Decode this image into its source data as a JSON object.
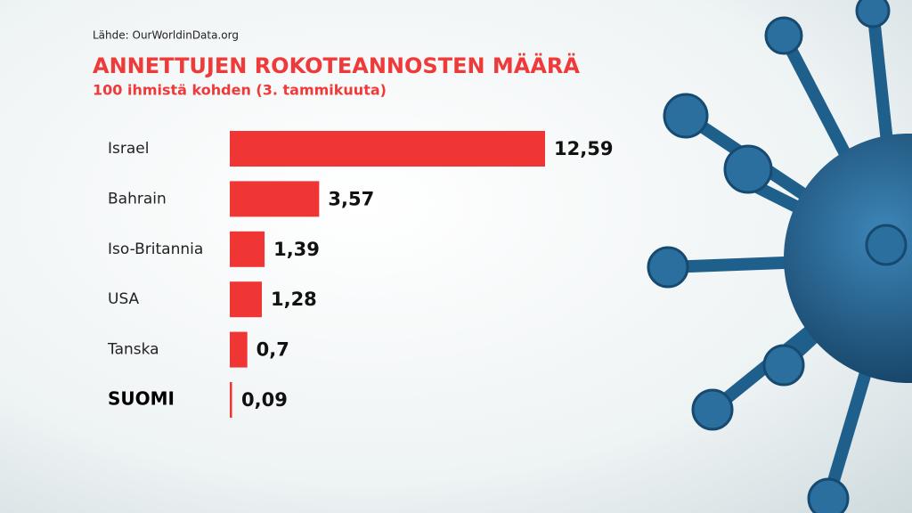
{
  "chart_data": {
    "type": "bar",
    "orientation": "horizontal",
    "source": "Lähde: OurWorldinData.org",
    "title": "ANNETTUJEN ROKOTEANNOSTEN MÄÄRÄ",
    "subtitle": "100 ihmistä kohden (3. tammikuuta)",
    "categories": [
      "Israel",
      "Bahrain",
      "Iso-Britannia",
      "USA",
      "Tanska",
      "SUOMI"
    ],
    "values": [
      12.59,
      3.57,
      1.39,
      1.28,
      0.7,
      0.09
    ],
    "value_labels": [
      "12,59",
      "3,57",
      "1,39",
      "1,28",
      "0,7",
      "0,09"
    ],
    "color": "#f03535"
  }
}
